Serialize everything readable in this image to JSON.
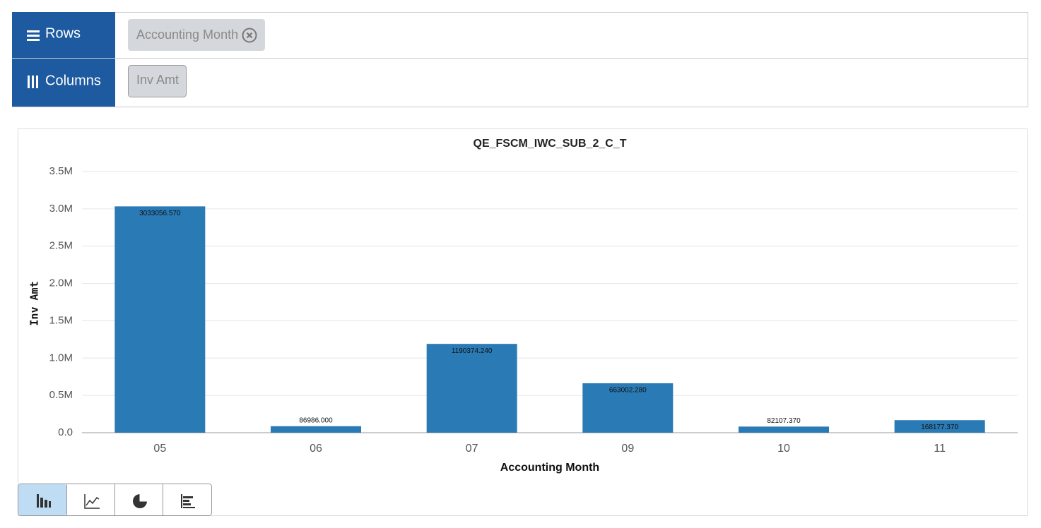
{
  "shelf": {
    "rows": {
      "label": "Rows",
      "items": [
        "Accounting Month"
      ]
    },
    "columns": {
      "label": "Columns",
      "items": [
        "Inv Amt"
      ]
    }
  },
  "chart_data": {
    "type": "bar",
    "title": "QE_FSCM_IWC_SUB_2_C_T",
    "x_label": "Accounting Month",
    "y_label": "Inv Amt",
    "categories": [
      "05",
      "06",
      "07",
      "09",
      "10",
      "11"
    ],
    "values": [
      3033056.57,
      86986,
      1190374.24,
      663002.28,
      82107.37,
      168177.37
    ],
    "value_labels": [
      "3033056.570",
      "86986.000",
      "1190374.240",
      "663002.280",
      "82107.370",
      "168177.370"
    ],
    "color": "#2a7ab5",
    "ylim": [
      0,
      3500000
    ],
    "yticks": [
      {
        "value": 0,
        "label": "0.0"
      },
      {
        "value": 500000,
        "label": "0.5M"
      },
      {
        "value": 1000000,
        "label": "1.0M"
      },
      {
        "value": 1500000,
        "label": "1.5M"
      },
      {
        "value": 2000000,
        "label": "2.0M"
      },
      {
        "value": 2500000,
        "label": "2.5M"
      },
      {
        "value": 3000000,
        "label": "3.0M"
      },
      {
        "value": 3500000,
        "label": "3.5M"
      }
    ],
    "grid": true
  }
}
